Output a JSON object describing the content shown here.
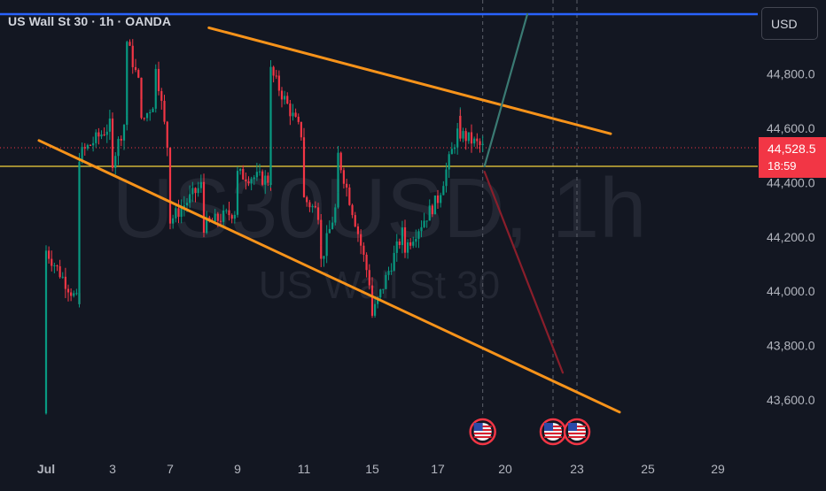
{
  "header": {
    "symbol_line": "US Wall St 30 · 1h · OANDA"
  },
  "currency_button": {
    "label": "USD"
  },
  "watermark": {
    "ticker": "US30USD, 1h",
    "name": "US Wall St 30"
  },
  "price_tag": {
    "price": "44,528.5",
    "countdown": "18:59"
  },
  "colors": {
    "background": "#131722",
    "up_candle": "#089981",
    "down_candle": "#f23645",
    "trendline": "#f7931a",
    "horizontal_level": "#f5d33c",
    "top_level": "#2962ff",
    "bull_path": "#3a7a73",
    "bear_path": "#8a1e2b"
  },
  "chart_data": {
    "type": "candlestick",
    "symbol": "US Wall St 30",
    "timeframe": "1h",
    "source": "OANDA",
    "y_axis": {
      "ticks": [
        43600,
        43800,
        44000,
        44200,
        44400,
        44600,
        44800
      ],
      "labels": [
        "43,600.0",
        "43,800.0",
        "44,000.0",
        "44,200.0",
        "44,400.0",
        "44,600.0",
        "44,800.0"
      ]
    },
    "x_axis": {
      "labels": [
        "Jul",
        "3",
        "7",
        "9",
        "11",
        "15",
        "17",
        "20",
        "23",
        "25",
        "29"
      ]
    },
    "last_price": 44528.5,
    "horizontal_level": 44460,
    "top_level": 45020,
    "wedge_upper": {
      "from": [
        "Jul 6",
        44970
      ],
      "to": [
        "Jul 24",
        44580
      ]
    },
    "wedge_lower": {
      "from": [
        "Jul 1",
        44555
      ],
      "to": [
        "Jul 24",
        43555
      ]
    },
    "price_path_knots": [
      [
        "Jul 1",
        43550
      ],
      [
        "Jul 1",
        44150
      ],
      [
        "Jul 2",
        43950
      ],
      [
        "Jul 2",
        44080
      ],
      [
        "Jul 2",
        44500
      ],
      [
        "Jul 3",
        44620
      ],
      [
        "Jul 3",
        44480
      ],
      [
        "Jul 4",
        44650
      ],
      [
        "Jul 4",
        44920
      ],
      [
        "Jul 5",
        44730
      ],
      [
        "Jul 5",
        44620
      ],
      [
        "Jul 6",
        44710
      ],
      [
        "Jul 6",
        44840
      ],
      [
        "Jul 7",
        44460
      ],
      [
        "Jul 7",
        44260
      ],
      [
        "Jul 8",
        44400
      ],
      [
        "Jul 8",
        44240
      ],
      [
        "Jul 9",
        44300
      ],
      [
        "Jul 9",
        44430
      ],
      [
        "Jul 10",
        44410
      ],
      [
        "Jul 10",
        44810
      ],
      [
        "Jul 11",
        44560
      ],
      [
        "Jul 11",
        44340
      ],
      [
        "Jul 12",
        44280
      ],
      [
        "Jul 12",
        44190
      ],
      [
        "Jul 12",
        44110
      ],
      [
        "Jul 13",
        44340
      ],
      [
        "Jul 13",
        44500
      ],
      [
        "Jul 14",
        44260
      ],
      [
        "Jul 15",
        43990
      ],
      [
        "Jul 15",
        43910
      ],
      [
        "Jul 16",
        44240
      ],
      [
        "Jul 16",
        44160
      ],
      [
        "Jul 17",
        44340
      ],
      [
        "Jul 18",
        44620
      ],
      [
        "Jul 18",
        44580
      ],
      [
        "Jul 19",
        44528.5
      ]
    ],
    "projections": [
      {
        "name": "bull",
        "from": [
          "Jul 19",
          44460
        ],
        "to": [
          "Jul 20",
          45020
        ]
      },
      {
        "name": "bear",
        "from": [
          "Jul 19",
          44440
        ],
        "to": [
          "Jul 21",
          43700
        ]
      }
    ],
    "event_markers": [
      "Jul 19",
      "Jul 22",
      "Jul 23"
    ]
  }
}
